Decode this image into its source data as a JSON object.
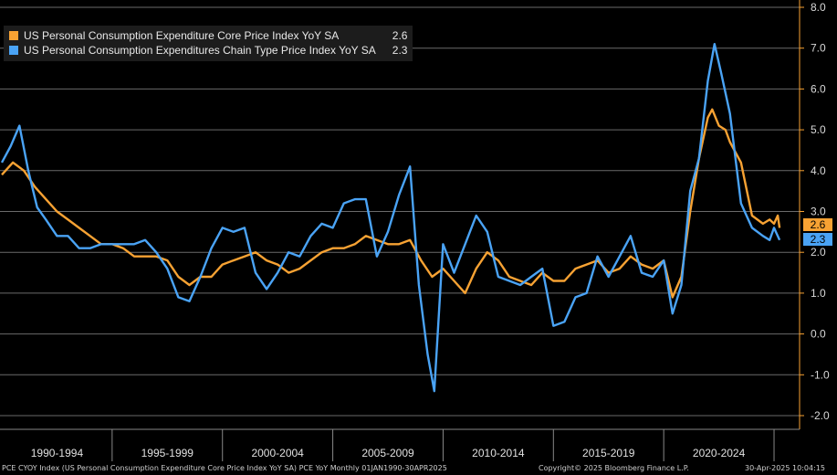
{
  "chart_data": {
    "type": "line",
    "title": "",
    "xlabel": "",
    "ylabel": "",
    "ylim": [
      -2.0,
      8.0
    ],
    "yticks": [
      "8.0",
      "7.0",
      "6.0",
      "5.0",
      "4.0",
      "3.0",
      "2.0",
      "1.0",
      "0.0",
      "-1.0",
      "-2.0"
    ],
    "x_range": [
      1990.0,
      2025.33
    ],
    "x_bands": [
      "1990-1994",
      "1995-1999",
      "2000-2004",
      "2005-2009",
      "2010-2014",
      "2015-2019",
      "2020-2024"
    ],
    "grid": true,
    "legend_position": "top-left",
    "series": [
      {
        "name": "US Personal Consumption Expenditure Core Price Index YoY SA",
        "last_value": "2.6",
        "color": "#f7a233",
        "points": [
          [
            1990.0,
            3.9
          ],
          [
            1990.5,
            4.2
          ],
          [
            1991.0,
            4.0
          ],
          [
            1991.5,
            3.6
          ],
          [
            1992.0,
            3.3
          ],
          [
            1992.5,
            3.0
          ],
          [
            1993.0,
            2.8
          ],
          [
            1993.5,
            2.6
          ],
          [
            1994.0,
            2.4
          ],
          [
            1994.5,
            2.2
          ],
          [
            1995.0,
            2.2
          ],
          [
            1995.5,
            2.1
          ],
          [
            1996.0,
            1.9
          ],
          [
            1996.5,
            1.9
          ],
          [
            1997.0,
            1.9
          ],
          [
            1997.5,
            1.8
          ],
          [
            1998.0,
            1.4
          ],
          [
            1998.5,
            1.2
          ],
          [
            1999.0,
            1.4
          ],
          [
            1999.5,
            1.4
          ],
          [
            2000.0,
            1.7
          ],
          [
            2000.5,
            1.8
          ],
          [
            2001.0,
            1.9
          ],
          [
            2001.5,
            2.0
          ],
          [
            2002.0,
            1.8
          ],
          [
            2002.5,
            1.7
          ],
          [
            2003.0,
            1.5
          ],
          [
            2003.5,
            1.6
          ],
          [
            2004.0,
            1.8
          ],
          [
            2004.5,
            2.0
          ],
          [
            2005.0,
            2.1
          ],
          [
            2005.5,
            2.1
          ],
          [
            2006.0,
            2.2
          ],
          [
            2006.5,
            2.4
          ],
          [
            2007.0,
            2.3
          ],
          [
            2007.5,
            2.2
          ],
          [
            2008.0,
            2.2
          ],
          [
            2008.5,
            2.3
          ],
          [
            2009.0,
            1.8
          ],
          [
            2009.5,
            1.4
          ],
          [
            2010.0,
            1.6
          ],
          [
            2010.5,
            1.3
          ],
          [
            2011.0,
            1.0
          ],
          [
            2011.5,
            1.6
          ],
          [
            2012.0,
            2.0
          ],
          [
            2012.5,
            1.8
          ],
          [
            2013.0,
            1.4
          ],
          [
            2013.5,
            1.3
          ],
          [
            2014.0,
            1.2
          ],
          [
            2014.5,
            1.5
          ],
          [
            2015.0,
            1.3
          ],
          [
            2015.5,
            1.3
          ],
          [
            2016.0,
            1.6
          ],
          [
            2016.5,
            1.7
          ],
          [
            2017.0,
            1.8
          ],
          [
            2017.5,
            1.5
          ],
          [
            2018.0,
            1.6
          ],
          [
            2018.5,
            1.9
          ],
          [
            2019.0,
            1.7
          ],
          [
            2019.5,
            1.6
          ],
          [
            2020.0,
            1.8
          ],
          [
            2020.4,
            0.9
          ],
          [
            2020.8,
            1.4
          ],
          [
            2021.2,
            3.0
          ],
          [
            2021.6,
            4.3
          ],
          [
            2022.0,
            5.3
          ],
          [
            2022.2,
            5.5
          ],
          [
            2022.5,
            5.1
          ],
          [
            2022.8,
            5.0
          ],
          [
            2023.0,
            4.7
          ],
          [
            2023.5,
            4.2
          ],
          [
            2024.0,
            2.9
          ],
          [
            2024.5,
            2.7
          ],
          [
            2024.8,
            2.8
          ],
          [
            2025.0,
            2.7
          ],
          [
            2025.17,
            2.9
          ],
          [
            2025.25,
            2.6
          ]
        ]
      },
      {
        "name": "US Personal Consumption Expenditures Chain Type Price Index YoY SA",
        "last_value": "2.3",
        "color": "#4aa3f5",
        "points": [
          [
            1990.0,
            4.2
          ],
          [
            1990.4,
            4.6
          ],
          [
            1990.8,
            5.1
          ],
          [
            1991.2,
            4.0
          ],
          [
            1991.6,
            3.1
          ],
          [
            1992.0,
            2.8
          ],
          [
            1992.5,
            2.4
          ],
          [
            1993.0,
            2.4
          ],
          [
            1993.5,
            2.1
          ],
          [
            1994.0,
            2.1
          ],
          [
            1994.5,
            2.2
          ],
          [
            1995.0,
            2.2
          ],
          [
            1995.5,
            2.2
          ],
          [
            1996.0,
            2.2
          ],
          [
            1996.5,
            2.3
          ],
          [
            1997.0,
            2.0
          ],
          [
            1997.5,
            1.6
          ],
          [
            1998.0,
            0.9
          ],
          [
            1998.5,
            0.8
          ],
          [
            1999.0,
            1.4
          ],
          [
            1999.5,
            2.1
          ],
          [
            2000.0,
            2.6
          ],
          [
            2000.5,
            2.5
          ],
          [
            2001.0,
            2.6
          ],
          [
            2001.5,
            1.5
          ],
          [
            2002.0,
            1.1
          ],
          [
            2002.5,
            1.5
          ],
          [
            2003.0,
            2.0
          ],
          [
            2003.5,
            1.9
          ],
          [
            2004.0,
            2.4
          ],
          [
            2004.5,
            2.7
          ],
          [
            2005.0,
            2.6
          ],
          [
            2005.5,
            3.2
          ],
          [
            2006.0,
            3.3
          ],
          [
            2006.5,
            3.3
          ],
          [
            2007.0,
            1.9
          ],
          [
            2007.5,
            2.5
          ],
          [
            2008.0,
            3.4
          ],
          [
            2008.5,
            4.1
          ],
          [
            2008.9,
            1.2
          ],
          [
            2009.3,
            -0.5
          ],
          [
            2009.6,
            -1.4
          ],
          [
            2010.0,
            2.2
          ],
          [
            2010.5,
            1.5
          ],
          [
            2011.0,
            2.2
          ],
          [
            2011.5,
            2.9
          ],
          [
            2012.0,
            2.5
          ],
          [
            2012.5,
            1.4
          ],
          [
            2013.0,
            1.3
          ],
          [
            2013.5,
            1.2
          ],
          [
            2014.0,
            1.4
          ],
          [
            2014.5,
            1.6
          ],
          [
            2015.0,
            0.2
          ],
          [
            2015.5,
            0.3
          ],
          [
            2016.0,
            0.9
          ],
          [
            2016.5,
            1.0
          ],
          [
            2017.0,
            1.9
          ],
          [
            2017.5,
            1.4
          ],
          [
            2018.0,
            1.9
          ],
          [
            2018.5,
            2.4
          ],
          [
            2019.0,
            1.5
          ],
          [
            2019.5,
            1.4
          ],
          [
            2020.0,
            1.8
          ],
          [
            2020.4,
            0.5
          ],
          [
            2020.8,
            1.2
          ],
          [
            2021.2,
            3.5
          ],
          [
            2021.6,
            4.3
          ],
          [
            2022.0,
            6.2
          ],
          [
            2022.3,
            7.1
          ],
          [
            2022.6,
            6.4
          ],
          [
            2023.0,
            5.4
          ],
          [
            2023.5,
            3.2
          ],
          [
            2024.0,
            2.6
          ],
          [
            2024.5,
            2.4
          ],
          [
            2024.8,
            2.3
          ],
          [
            2025.0,
            2.6
          ],
          [
            2025.25,
            2.3
          ]
        ]
      }
    ]
  },
  "footer": {
    "left": "PCE CYOY Index (US Personal Consumption Expenditure Core Price Index YoY SA) PCE YoY  Monthly 01JAN1990-30APR2025",
    "center": "Copyright© 2025 Bloomberg Finance L.P.",
    "right": "30-Apr-2025 10:04:15"
  }
}
